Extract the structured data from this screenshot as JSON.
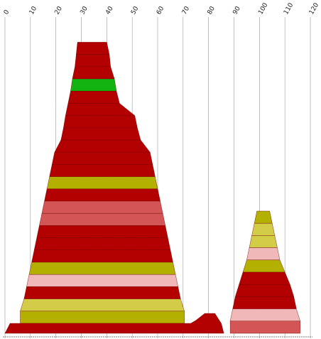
{
  "chart_data": {
    "type": "area",
    "title": "",
    "xlabel": "",
    "ylabel": "",
    "xlim": [
      0,
      120
    ],
    "x_ticks": [
      0,
      10,
      20,
      30,
      40,
      50,
      60,
      70,
      80,
      90,
      100,
      110,
      120
    ],
    "grid": true,
    "legend": "none",
    "colors": {
      "dark_red": "#b30000",
      "light_red": "#d45555",
      "pink": "#f0b8b8",
      "olive": "#b3b000",
      "yellow": "#d2cc46",
      "green": "#11b411"
    },
    "groups": [
      {
        "base": [
          0,
          86
        ],
        "bands": [
          {
            "left": 28.5,
            "right": 40.0,
            "color": "dark_red"
          },
          {
            "left": 28.0,
            "right": 41.0,
            "color": "dark_red"
          },
          {
            "left": 27.5,
            "right": 41.5,
            "color": "dark_red"
          },
          {
            "left": 26.5,
            "right": 43.0,
            "color": "green"
          },
          {
            "left": 25.8,
            "right": 43.8,
            "color": "dark_red"
          },
          {
            "left": 24.8,
            "right": 45.0,
            "color": "dark_red"
          },
          {
            "left": 23.8,
            "right": 51.0,
            "color": "dark_red"
          },
          {
            "left": 23.0,
            "right": 52.0,
            "color": "dark_red"
          },
          {
            "left": 22.0,
            "right": 53.3,
            "color": "dark_red"
          },
          {
            "left": 19.5,
            "right": 57.0,
            "color": "dark_red"
          },
          {
            "left": 18.5,
            "right": 58.0,
            "color": "dark_red"
          },
          {
            "left": 17.5,
            "right": 59.0,
            "color": "olive"
          },
          {
            "left": 16.5,
            "right": 60.0,
            "color": "dark_red"
          },
          {
            "left": 15.5,
            "right": 61.0,
            "color": "light_red"
          },
          {
            "left": 14.5,
            "right": 62.0,
            "color": "light_red"
          },
          {
            "left": 13.5,
            "right": 63.0,
            "color": "dark_red"
          },
          {
            "left": 12.5,
            "right": 64.0,
            "color": "dark_red"
          },
          {
            "left": 11.5,
            "right": 65.0,
            "color": "dark_red"
          },
          {
            "left": 10.5,
            "right": 66.0,
            "color": "olive"
          },
          {
            "left": 9.5,
            "right": 67.0,
            "color": "pink"
          },
          {
            "left": 8.5,
            "right": 68.0,
            "color": "dark_red"
          },
          {
            "left": 7.5,
            "right": 69.0,
            "color": "yellow"
          },
          {
            "left": 6.0,
            "right": 70.5,
            "color": "olive"
          }
        ],
        "bottom": {
          "color": "dark_red",
          "points": [
            [
              0,
              0
            ],
            [
              2,
              1
            ],
            [
              73,
              1
            ],
            [
              75,
              1.3
            ],
            [
              77,
              1.7
            ],
            [
              78.5,
              2
            ],
            [
              82.5,
              2
            ],
            [
              85,
              1
            ],
            [
              86,
              0
            ]
          ]
        },
        "bump": {
          "left": 78,
          "right": 82,
          "color": "olive"
        }
      },
      {
        "base": [
          88,
          116
        ],
        "bands": [
          {
            "left": 99.0,
            "right": 104.0,
            "color": "olive"
          },
          {
            "left": 98.0,
            "right": 105.0,
            "color": "yellow"
          },
          {
            "left": 97.0,
            "right": 106.0,
            "color": "yellow"
          },
          {
            "left": 96.0,
            "right": 107.0,
            "color": "pink"
          },
          {
            "left": 95.0,
            "right": 108.0,
            "color": "olive"
          },
          {
            "left": 93.5,
            "right": 110.0,
            "color": "dark_red"
          },
          {
            "left": 92.0,
            "right": 112.0,
            "color": "dark_red"
          },
          {
            "left": 90.5,
            "right": 113.5,
            "color": "dark_red"
          },
          {
            "left": 89.5,
            "right": 114.5,
            "color": "pink"
          },
          {
            "left": 88.5,
            "right": 116.0,
            "color": "light_red"
          }
        ]
      }
    ]
  }
}
